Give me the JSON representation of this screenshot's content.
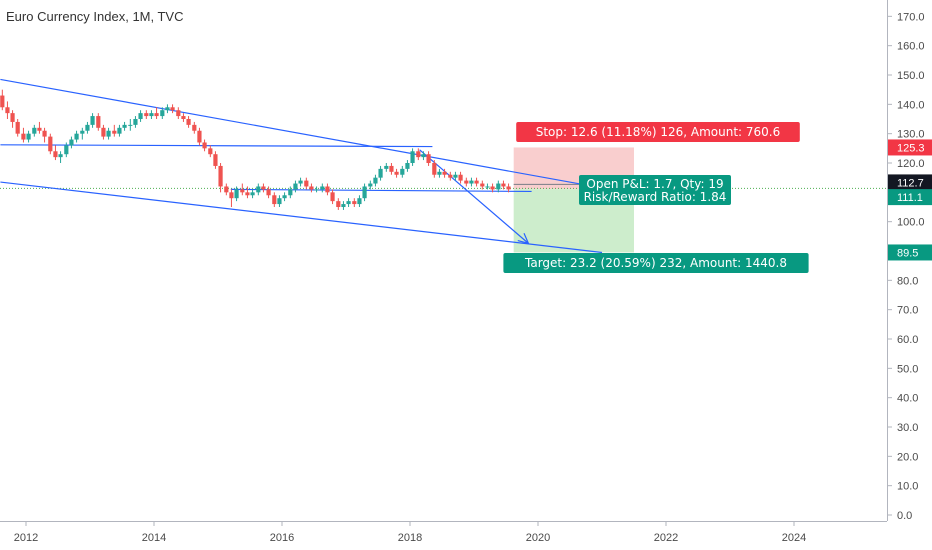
{
  "chart_data": {
    "type": "candlestick",
    "title": "Euro Currency Index, 1M, TVC",
    "ylim": [
      0,
      175
    ],
    "y_ticks": [
      "0.0",
      "10.0",
      "20.0",
      "30.0",
      "40.0",
      "50.0",
      "60.0",
      "70.0",
      "80.0",
      "90.0",
      "100.0",
      "110.0",
      "120.0",
      "130.0",
      "140.0",
      "150.0",
      "160.0",
      "170.0"
    ],
    "x_range": [
      2011.6,
      2025.5
    ],
    "x_ticks": [
      {
        "label": "2012",
        "year": 2012
      },
      {
        "label": "2014",
        "year": 2014
      },
      {
        "label": "2016",
        "year": 2016
      },
      {
        "label": "2018",
        "year": 2018
      },
      {
        "label": "2020",
        "year": 2020
      },
      {
        "label": "2022",
        "year": 2022
      },
      {
        "label": "2024",
        "year": 2024
      }
    ],
    "colors": {
      "up": "#26a69a",
      "down": "#ef5350",
      "line": "#2962ff",
      "stop_fill": "#f8c5c5",
      "target_fill": "#c8ebc6",
      "stop_label": "#f23645",
      "target_label": "#089981",
      "price_tag": "#131722",
      "dotted": "#4caf50"
    },
    "candles": [
      [
        2011.63,
        143,
        145,
        138,
        139
      ],
      [
        2011.71,
        139,
        141,
        135,
        137
      ],
      [
        2011.79,
        137,
        138,
        132,
        134
      ],
      [
        2011.87,
        134,
        135,
        129,
        130
      ],
      [
        2011.96,
        130,
        132,
        127,
        128
      ],
      [
        2012.04,
        128,
        131,
        127,
        130
      ],
      [
        2012.13,
        130,
        133,
        129,
        132
      ],
      [
        2012.21,
        132,
        134,
        130,
        131
      ],
      [
        2012.29,
        131,
        132,
        127,
        129
      ],
      [
        2012.38,
        129,
        130,
        123,
        124
      ],
      [
        2012.46,
        124,
        126,
        121,
        122
      ],
      [
        2012.54,
        122,
        124,
        120,
        123
      ],
      [
        2012.63,
        123,
        127,
        122,
        126
      ],
      [
        2012.71,
        126,
        129,
        125,
        128
      ],
      [
        2012.79,
        128,
        131,
        127,
        130
      ],
      [
        2012.88,
        130,
        132,
        128,
        131
      ],
      [
        2012.96,
        131,
        134,
        130,
        133
      ],
      [
        2013.04,
        133,
        137,
        132,
        136
      ],
      [
        2013.13,
        136,
        137,
        131,
        132
      ],
      [
        2013.21,
        132,
        133,
        128,
        129
      ],
      [
        2013.29,
        129,
        132,
        128,
        131
      ],
      [
        2013.38,
        131,
        133,
        129,
        130
      ],
      [
        2013.46,
        130,
        133,
        129,
        132
      ],
      [
        2013.54,
        132,
        134,
        131,
        133
      ],
      [
        2013.63,
        133,
        135,
        131,
        133
      ],
      [
        2013.71,
        133,
        136,
        132,
        135
      ],
      [
        2013.79,
        135,
        138,
        134,
        137
      ],
      [
        2013.88,
        137,
        138,
        135,
        136
      ],
      [
        2013.96,
        136,
        138,
        135,
        137
      ],
      [
        2014.04,
        137,
        139,
        135,
        136
      ],
      [
        2014.13,
        136,
        139,
        135,
        138
      ],
      [
        2014.21,
        138,
        140,
        137,
        139
      ],
      [
        2014.29,
        139,
        140,
        137,
        138
      ],
      [
        2014.38,
        138,
        139,
        135,
        136
      ],
      [
        2014.46,
        136,
        137,
        134,
        135
      ],
      [
        2014.54,
        135,
        136,
        132,
        133
      ],
      [
        2014.63,
        133,
        134,
        130,
        131
      ],
      [
        2014.71,
        131,
        132,
        126,
        127
      ],
      [
        2014.79,
        127,
        128,
        124,
        125
      ],
      [
        2014.88,
        125,
        126,
        122,
        123
      ],
      [
        2014.96,
        123,
        124,
        118,
        119
      ],
      [
        2015.04,
        119,
        120,
        110,
        112
      ],
      [
        2015.13,
        112,
        113,
        109,
        110
      ],
      [
        2015.21,
        110,
        111,
        105,
        108
      ],
      [
        2015.29,
        108,
        112,
        107,
        111
      ],
      [
        2015.38,
        111,
        113,
        109,
        110
      ],
      [
        2015.46,
        110,
        112,
        108,
        109
      ],
      [
        2015.54,
        109,
        111,
        108,
        110
      ],
      [
        2015.63,
        110,
        113,
        109,
        112
      ],
      [
        2015.71,
        112,
        113,
        110,
        111
      ],
      [
        2015.79,
        111,
        112,
        108,
        109
      ],
      [
        2015.88,
        109,
        110,
        105,
        106
      ],
      [
        2015.96,
        106,
        109,
        105,
        108
      ],
      [
        2016.04,
        108,
        110,
        107,
        109
      ],
      [
        2016.13,
        109,
        112,
        108,
        111
      ],
      [
        2016.21,
        111,
        114,
        110,
        113
      ],
      [
        2016.29,
        113,
        115,
        112,
        114
      ],
      [
        2016.38,
        114,
        115,
        111,
        112
      ],
      [
        2016.46,
        112,
        113,
        110,
        111
      ],
      [
        2016.54,
        111,
        112,
        110,
        111
      ],
      [
        2016.63,
        111,
        113,
        110,
        112
      ],
      [
        2016.71,
        112,
        113,
        109,
        110
      ],
      [
        2016.79,
        110,
        111,
        106,
        107
      ],
      [
        2016.88,
        107,
        108,
        104,
        105
      ],
      [
        2016.96,
        105,
        107,
        104,
        106
      ],
      [
        2017.04,
        106,
        108,
        105,
        107
      ],
      [
        2017.13,
        107,
        108,
        105,
        106
      ],
      [
        2017.21,
        106,
        109,
        105,
        108
      ],
      [
        2017.29,
        108,
        113,
        107,
        112
      ],
      [
        2017.38,
        112,
        114,
        111,
        113
      ],
      [
        2017.46,
        113,
        116,
        112,
        115
      ],
      [
        2017.54,
        115,
        119,
        114,
        118
      ],
      [
        2017.63,
        118,
        120,
        117,
        119
      ],
      [
        2017.71,
        119,
        120,
        116,
        117
      ],
      [
        2017.79,
        117,
        118,
        115,
        116
      ],
      [
        2017.88,
        116,
        119,
        115,
        118
      ],
      [
        2017.96,
        118,
        121,
        117,
        120
      ],
      [
        2018.04,
        120,
        125,
        119,
        124
      ],
      [
        2018.13,
        124,
        125,
        121,
        122
      ],
      [
        2018.21,
        122,
        124,
        121,
        123
      ],
      [
        2018.29,
        123,
        124,
        119,
        120
      ],
      [
        2018.38,
        120,
        121,
        115,
        116
      ],
      [
        2018.46,
        116,
        118,
        115,
        117
      ],
      [
        2018.54,
        117,
        118,
        115,
        116
      ],
      [
        2018.63,
        116,
        117,
        114,
        115
      ],
      [
        2018.71,
        115,
        117,
        114,
        116
      ],
      [
        2018.79,
        116,
        117,
        113,
        114
      ],
      [
        2018.88,
        114,
        115,
        112,
        113
      ],
      [
        2018.96,
        113,
        115,
        112,
        114
      ],
      [
        2019.04,
        114,
        115,
        112,
        113
      ],
      [
        2019.13,
        113,
        114,
        111,
        112
      ],
      [
        2019.21,
        112,
        113,
        111,
        112
      ],
      [
        2019.29,
        112,
        113,
        110,
        111
      ],
      [
        2019.38,
        111,
        114,
        110,
        113
      ],
      [
        2019.46,
        113,
        114,
        111,
        112
      ],
      [
        2019.54,
        112,
        113,
        110,
        111
      ]
    ],
    "trendlines": [
      {
        "x1": 2011.6,
        "y1": 148.5,
        "x2": 2020.7,
        "y2": 112.7
      },
      {
        "x1": 2011.6,
        "y1": 126.2,
        "x2": 2018.35,
        "y2": 125.6
      },
      {
        "x1": 2015.2,
        "y1": 111.0,
        "x2": 2019.9,
        "y2": 110.3
      },
      {
        "x1": 2011.6,
        "y1": 113.5,
        "x2": 2021.0,
        "y2": 89.5
      }
    ],
    "arrow": {
      "x1": 2018.15,
      "y1": 124.5,
      "x2": 2019.85,
      "y2": 92.6
    },
    "position": {
      "x_start": 2019.62,
      "x_end": 2021.5,
      "stop": 125.3,
      "entry": 111.1,
      "target": 89.5,
      "current": 112.7,
      "stop_label": "Stop: 12.6 (11.18%) 126, Amount: 760.6",
      "target_label": "Target: 23.2 (20.59%) 232, Amount: 1440.8",
      "pnl_label": "Open P&L: 1.7, Qty: 19",
      "rr_label": "Risk/Reward Ratio: 1.84"
    },
    "price_tags": [
      {
        "label": "125.3",
        "value": 125.3,
        "kind": "stop"
      },
      {
        "label": "112.7",
        "value": 112.7,
        "kind": "current"
      },
      {
        "label": "111.1",
        "value": 111.1,
        "kind": "entry"
      },
      {
        "label": "89.5",
        "value": 89.5,
        "kind": "target"
      }
    ]
  }
}
